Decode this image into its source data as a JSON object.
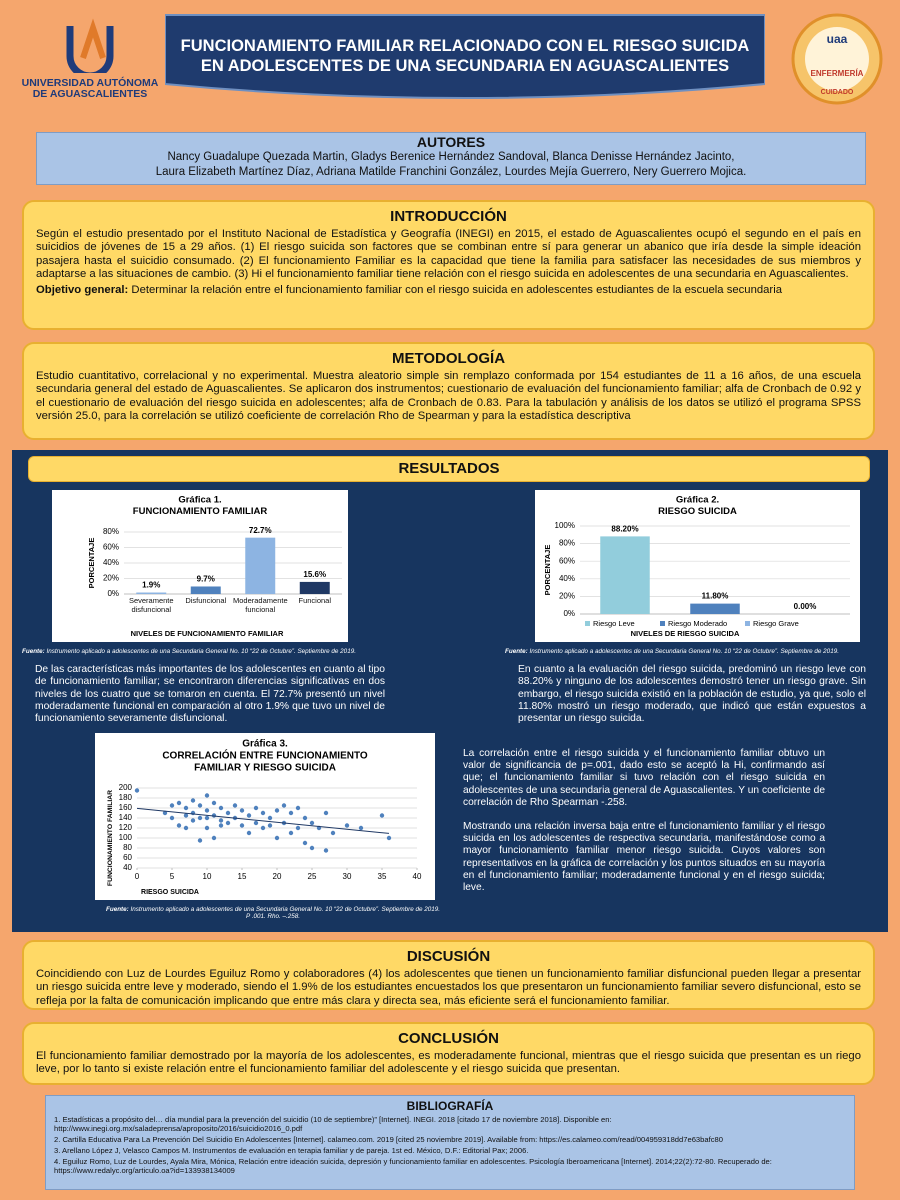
{
  "header": {
    "university": [
      "UNIVERSIDAD AUTÓNOMA",
      "DE AGUASCALIENTES"
    ],
    "title": [
      "FUNCIONAMIENTO FAMILIAR RELACIONADO CON EL RIESGO SUICIDA",
      "EN ADOLESCENTES DE UNA SECUNDARIA EN AGUASCALIENTES"
    ],
    "logo_right": [
      "uaa",
      "ENFERMERÍA",
      "CUIDADO"
    ]
  },
  "authors": {
    "heading": "AUTORES",
    "lines": [
      "Nancy Guadalupe Quezada Martin, Gladys Berenice Hernández Sandoval,  Blanca Denisse Hernández Jacinto,",
      "Laura Elizabeth Martínez Díaz, Adriana Matilde Franchini González, Lourdes Mejía Guerrero, Nery Guerrero Mojica."
    ]
  },
  "introduction": {
    "heading": "INTRODUCCIÓN",
    "text": "Según el estudio presentado por el Instituto Nacional de Estadística y Geografía (INEGI) en 2015, el estado de Aguascalientes ocupó el segundo en el país en suicidios de jóvenes de 15 a 29 años. (1) El riesgo suicida son factores que se combinan entre sí para generar un abanico que iría desde la simple ideación pasajera hasta el suicidio consumado. (2) El funcionamiento Familiar es la capacidad que tiene la familia para satisfacer las necesidades de sus miembros y adaptarse a las situaciones de cambio. (3) Hi el funcionamiento familiar tiene relación con el riesgo suicida en adolescentes de una secundaria en Aguascalientes.",
    "objective_label": "Objetivo general:",
    "objective": "Determinar la relación entre el funcionamiento familiar con el riesgo suicida en adolescentes estudiantes de la escuela secundaria"
  },
  "methodology": {
    "heading": "METODOLOGÍA",
    "text": "Estudio cuantitativo, correlacional y no experimental. Muestra aleatorio simple sin remplazo conformada por 154 estudiantes de 11 a 16 años, de una escuela secundaria general del estado de Aguascalientes. Se aplicaron dos instrumentos; cuestionario de evaluación del funcionamiento familiar; alfa de Cronbach de 0.92 y el cuestionario de evaluación del riesgo suicida en adolescentes; alfa de Cronbach de 0.83. Para la tabulación y análisis de los datos se utilizó el programa SPSS versión 25.0, para la correlación se utilizó coeficiente de correlación Rho de Spearman y para la estadística descriptiva"
  },
  "results": {
    "heading": "RESULTADOS",
    "chart1": {
      "type": "bar",
      "title": [
        "Gráfica 1.",
        "FUNCIONAMIENTO FAMILIAR"
      ],
      "categories": [
        "Severamente disfuncional",
        "Disfuncional",
        "Moderadamente funcional",
        "Funcional"
      ],
      "values": [
        1.9,
        9.7,
        72.7,
        15.6
      ],
      "value_labels": [
        "1.9%",
        "9.7%",
        "72.7%",
        "15.6%"
      ],
      "colors": [
        "#8db4e2",
        "#4f81bd",
        "#8db4e2",
        "#1f3864"
      ],
      "ylim": [
        0,
        80
      ],
      "yticks": [
        {
          "value": 0,
          "label": "0%"
        },
        {
          "value": 20,
          "label": "20%"
        },
        {
          "value": 40,
          "label": "40%"
        },
        {
          "value": 60,
          "label": "60%"
        },
        {
          "value": 80,
          "label": "80%"
        }
      ],
      "y_label": "PORCENTAJE",
      "x_label": "NIVELES DE FUNCIONAMIENTO  FAMILIAR"
    },
    "chart2": {
      "type": "bar",
      "title": [
        "Gráfica  2.",
        "RIESGO  SUICIDA"
      ],
      "categories": [
        "Riesgo Leve",
        "Riesgo Moderado",
        "Riesgo Grave"
      ],
      "values": [
        88.2,
        11.8,
        0
      ],
      "value_labels": [
        "88.20%",
        "11.80%",
        "0.00%"
      ],
      "colors": [
        "#92cddc",
        "#4f81bd",
        "#8db4e2"
      ],
      "legend": "bottom",
      "ylim": [
        0,
        100
      ],
      "yticks": [
        {
          "value": 0,
          "label": "0%"
        },
        {
          "value": 20,
          "label": "20%"
        },
        {
          "value": 40,
          "label": "40%"
        },
        {
          "value": 60,
          "label": "60%"
        },
        {
          "value": 80,
          "label": "80%"
        },
        {
          "value": 100,
          "label": "100%"
        }
      ],
      "y_label": "PORCENTAJE",
      "x_label": "NIVELES DE RIESGO SUICIDA"
    },
    "fuente_label": "Fuente:",
    "fuente_text": "Instrumento aplicado a adolescentes de una Secundaria General No. 10 “22 de Octubre”. Septiembre de 2019.",
    "text_left": "De las características más importantes de los adolescentes en cuanto al tipo de funcionamiento familiar; se encontraron diferencias significativas en dos niveles de los cuatro que se tomaron en cuenta. El 72.7% presentó un nivel moderadamente funcional en comparación al otro 1.9% que tuvo un nivel de funcionamiento severamente disfuncional.",
    "text_right": "En cuanto a la evaluación del riesgo suicida, predominó un riesgo leve con 88.20% y ninguno de los adolescentes demostró tener un riesgo grave. Sin embargo, el riesgo suicida existió en la población de estudio, ya que, solo el 11.80% mostró un riesgo moderado, que indicó que están expuestos a presentar un riesgo suicida.",
    "chart3": {
      "type": "scatter",
      "title": [
        "Gráfica 3.",
        "CORRELACIÓN  ENTRE FUNCIONAMIENTO",
        "FAMILIAR Y RIESGO SUICIDA"
      ],
      "color": "#4f81bd",
      "trendline": true,
      "x": [
        0,
        4,
        5,
        5,
        6,
        6,
        7,
        7,
        7,
        8,
        8,
        8,
        9,
        9,
        9,
        10,
        10,
        10,
        10,
        11,
        11,
        11,
        12,
        12,
        12,
        13,
        13,
        14,
        14,
        15,
        15,
        16,
        16,
        17,
        17,
        18,
        18,
        19,
        19,
        20,
        20,
        21,
        21,
        22,
        22,
        23,
        23,
        24,
        24,
        25,
        25,
        26,
        27,
        27,
        28,
        30,
        32,
        35,
        36
      ],
      "values": [
        195,
        150,
        165,
        140,
        170,
        125,
        160,
        145,
        120,
        175,
        150,
        135,
        165,
        140,
        95,
        185,
        155,
        140,
        120,
        170,
        145,
        100,
        160,
        135,
        125,
        150,
        130,
        165,
        140,
        155,
        125,
        145,
        110,
        160,
        130,
        150,
        120,
        140,
        125,
        155,
        100,
        165,
        130,
        150,
        110,
        160,
        120,
        90,
        140,
        130,
        80,
        120,
        150,
        75,
        110,
        125,
        120,
        145,
        100
      ],
      "xlim": [
        0,
        40
      ],
      "xticks": [
        0,
        5,
        10,
        15,
        20,
        25,
        30,
        35,
        40
      ],
      "ylim": [
        40,
        200
      ],
      "yticks": [
        40,
        60,
        80,
        100,
        120,
        140,
        160,
        180,
        200
      ],
      "grid": true,
      "y_label": "FUNCIONAMIENTO FAMILIAR",
      "x_label": "RIESGO SUICIDA"
    },
    "fuente3_text": "Instrumento aplicado a adolescentes de una Secundaria General No. 10 “22 de Octubre”. Septiembre de 2019.",
    "fuente3_extra": "P .001. Rho. –.258.",
    "text_corr_1": "La correlación entre el riesgo suicida y el funcionamiento familiar obtuvo un valor de significancia de p=.001, dado esto se aceptó la Hi, confirmando así que; el funcionamiento familiar si tuvo relación con el riesgo suicida en adolescentes de una secundaria general de Aguascalientes. Y un coeficiente de correlación de Rho Spearman -.258.",
    "text_corr_2": "Mostrando una relación inversa baja entre el funcionamiento familiar y el riesgo suicida en los adolescentes de respectiva secundaria,  manifestándose como a mayor funcionamiento familiar menor riesgo suicida. Cuyos valores son representativos en la gráfica de correlación y los puntos situados en su mayoría en el funcionamiento familiar; moderadamente funcional y  en el riesgo suicida; leve."
  },
  "discussion": {
    "heading": "DISCUSIÓN",
    "text": "Coincidiendo con Luz de Lourdes Eguiluz Romo y colaboradores (4) los adolescentes que tienen un funcionamiento familiar disfuncional pueden llegar a presentar un riesgo suicida entre leve y moderado, siendo el 1.9% de los estudiantes encuestados los que presentaron un funcionamiento familiar severo disfuncional, esto se refleja por la falta de comunicación implicando que entre más clara y directa sea, más eficiente será el funcionamiento familiar."
  },
  "conclusion": {
    "heading": "CONCLUSIÓN",
    "text": "El funcionamiento familiar demostrado por la mayoría de los adolescentes, es moderadamente funcional, mientras que el riesgo suicida que presentan es un riego leve, por lo tanto si existe relación entre el funcionamiento familiar del adolescente y el riesgo suicida que presentan."
  },
  "bibliography": {
    "heading": "BIBLIOGRAFÍA",
    "items": [
      "1. Estadísticas a propósito del… día mundial para la prevención del suicidio (10 de septiembre)” [Internet]. INEGI. 2018 [citado 17 de noviembre 2018]. Disponible en: http://www.inegi.org.mx/saladeprensa/aproposito/2016/suicidio2016_0.pdf",
      "2. Cartilla Educativa Para La Prevención Del Suicidio En Adolescentes [Internet]. calameo.com. 2019 [cited 25 noviembre 2019]. Available from: https://es.calameo.com/read/004959318dd7e63bafc80",
      "3. Arellano López J, Velasco Campos M. Instrumentos de evaluación en terapia familiar y de pareja. 1st ed. México, D.F.: Editorial Pax; 2006.",
      "4. Eguiluz Romo, Luz de Lourdes, Ayala Mira, Mónica, Relación entre ideación suicida, depresión y funcionamiento familiar en adolescentes. Psicología Iberoamericana [Internet]. 2014;22(2):72-80. Recuperado de: https://www.redalyc.org/articulo.oa?id=133938134009"
    ]
  }
}
